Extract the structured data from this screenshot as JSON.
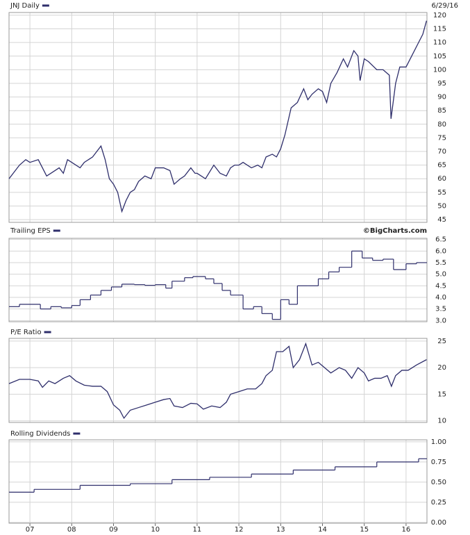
{
  "chart_data": [
    {
      "type": "line",
      "subtitle": "6/29/16",
      "series": [
        {
          "name": "JNJ Daily",
          "color": "#2e2e6b",
          "x": [
            2006.5,
            2006.75,
            2006.9,
            2007.0,
            2007.2,
            2007.3,
            2007.4,
            2007.5,
            2007.7,
            2007.8,
            2007.9,
            2008.0,
            2008.2,
            2008.3,
            2008.5,
            2008.6,
            2008.7,
            2008.8,
            2008.9,
            2009.0,
            2009.1,
            2009.2,
            2009.3,
            2009.4,
            2009.5,
            2009.6,
            2009.75,
            2009.9,
            2010.0,
            2010.2,
            2010.35,
            2010.45,
            2010.6,
            2010.7,
            2010.85,
            2010.95,
            2011.0,
            2011.2,
            2011.4,
            2011.55,
            2011.7,
            2011.8,
            2011.9,
            2012.0,
            2012.1,
            2012.3,
            2012.45,
            2012.55,
            2012.65,
            2012.8,
            2012.9,
            2013.0,
            2013.1,
            2013.25,
            2013.4,
            2013.55,
            2013.65,
            2013.75,
            2013.9,
            2014.0,
            2014.1,
            2014.2,
            2014.35,
            2014.5,
            2014.6,
            2014.75,
            2014.85,
            2014.9,
            2015.0,
            2015.1,
            2015.3,
            2015.45,
            2015.6,
            2015.64,
            2015.75,
            2015.85,
            2016.0,
            2016.1,
            2016.3,
            2016.4,
            2016.49
          ],
          "values": [
            60,
            65,
            67,
            66,
            67,
            64,
            61,
            62,
            64,
            62,
            67,
            66,
            64,
            66,
            68,
            70,
            72,
            67,
            60,
            58,
            55,
            48,
            52,
            55,
            56,
            59,
            61,
            60,
            64,
            64,
            63,
            58,
            60,
            61,
            64,
            62,
            62,
            60,
            65,
            62,
            61,
            64,
            65,
            65,
            66,
            64,
            65,
            64,
            68,
            69,
            68,
            71,
            76,
            86,
            88,
            93,
            89,
            91,
            93,
            92,
            88,
            95,
            99,
            104,
            101,
            107,
            105,
            96,
            104,
            103,
            100,
            100,
            98,
            82,
            95,
            101,
            101,
            104,
            110,
            113,
            118
          ]
        }
      ],
      "xlim": [
        2006.5,
        2016.5
      ],
      "xticks": [
        2007,
        2008,
        2009,
        2010,
        2011,
        2012,
        2013,
        2014,
        2015,
        2016
      ],
      "ylim": [
        44,
        121
      ],
      "yticks": [
        45,
        50,
        55,
        60,
        65,
        70,
        75,
        80,
        85,
        90,
        95,
        100,
        105,
        110,
        115,
        120
      ],
      "grid": true
    },
    {
      "type": "step",
      "annotation": "©BigCharts.com",
      "series": [
        {
          "name": "Trailing EPS",
          "color": "#2e2e6b",
          "x": [
            2006.5,
            2006.75,
            2007.25,
            2007.5,
            2007.75,
            2008.0,
            2008.2,
            2008.45,
            2008.7,
            2008.95,
            2009.2,
            2009.5,
            2009.75,
            2010.0,
            2010.25,
            2010.4,
            2010.7,
            2010.9,
            2011.2,
            2011.4,
            2011.6,
            2011.8,
            2012.1,
            2012.35,
            2012.55,
            2012.8,
            2013.0,
            2013.2,
            2013.4,
            2013.65,
            2013.9,
            2014.15,
            2014.4,
            2014.7,
            2014.95,
            2015.2,
            2015.45,
            2015.7,
            2016.0,
            2016.25
          ],
          "values": [
            3.6,
            3.7,
            3.5,
            3.6,
            3.55,
            3.65,
            3.9,
            4.1,
            4.3,
            4.45,
            4.57,
            4.55,
            4.52,
            4.55,
            4.4,
            4.7,
            4.85,
            4.9,
            4.8,
            4.6,
            4.3,
            4.1,
            3.5,
            3.6,
            3.3,
            3.05,
            3.9,
            3.7,
            4.5,
            4.5,
            4.8,
            5.1,
            5.3,
            6.0,
            5.7,
            5.6,
            5.65,
            5.2,
            5.45,
            5.5
          ]
        }
      ],
      "xlim": [
        2006.5,
        2016.5
      ],
      "xticks": [
        2007,
        2008,
        2009,
        2010,
        2011,
        2012,
        2013,
        2014,
        2015,
        2016
      ],
      "ylim": [
        2.95,
        6.55
      ],
      "yticks": [
        {
          "value": 3,
          "label": "3.0"
        },
        3.5,
        {
          "value": 4,
          "label": "4.0"
        },
        4.5,
        {
          "value": 5,
          "label": "5.0"
        },
        5.5,
        {
          "value": 6,
          "label": "6.0"
        },
        6.5
      ],
      "grid": true
    },
    {
      "type": "line",
      "series": [
        {
          "name": "P/E Ratio",
          "color": "#2e2e6b",
          "x": [
            2006.5,
            2006.75,
            2007.0,
            2007.2,
            2007.3,
            2007.45,
            2007.6,
            2007.8,
            2007.95,
            2008.1,
            2008.3,
            2008.5,
            2008.7,
            2008.85,
            2009.0,
            2009.15,
            2009.25,
            2009.4,
            2009.6,
            2009.8,
            2010.0,
            2010.2,
            2010.35,
            2010.45,
            2010.65,
            2010.85,
            2011.0,
            2011.15,
            2011.35,
            2011.55,
            2011.7,
            2011.8,
            2012.0,
            2012.2,
            2012.4,
            2012.55,
            2012.65,
            2012.8,
            2012.9,
            2013.05,
            2013.2,
            2013.3,
            2013.45,
            2013.6,
            2013.75,
            2013.9,
            2014.05,
            2014.2,
            2014.4,
            2014.55,
            2014.7,
            2014.85,
            2015.0,
            2015.1,
            2015.25,
            2015.4,
            2015.55,
            2015.65,
            2015.75,
            2015.9,
            2016.05,
            2016.25,
            2016.49
          ],
          "values": [
            17,
            17.8,
            17.8,
            17.5,
            16.3,
            17.5,
            17,
            18,
            18.5,
            17.5,
            16.7,
            16.5,
            16.5,
            15.5,
            13,
            12,
            10.5,
            12,
            12.5,
            13,
            13.5,
            14,
            14.2,
            12.8,
            12.5,
            13.3,
            13.2,
            12.2,
            12.8,
            12.5,
            13.5,
            15,
            15.5,
            16,
            16,
            17,
            18.5,
            19.5,
            23,
            23,
            24,
            20,
            21.5,
            24.5,
            20.5,
            21,
            20,
            19,
            20,
            19.5,
            18,
            20,
            19,
            17.5,
            18,
            18,
            18.5,
            16.5,
            18.5,
            19.5,
            19.5,
            20.5,
            21.5
          ]
        }
      ],
      "xlim": [
        2006.5,
        2016.5
      ],
      "xticks": [
        2007,
        2008,
        2009,
        2010,
        2011,
        2012,
        2013,
        2014,
        2015,
        2016
      ],
      "ylim": [
        9.7,
        25.5
      ],
      "yticks": [
        10,
        15,
        20,
        25
      ],
      "grid": true
    },
    {
      "type": "step",
      "series": [
        {
          "name": "Rolling Dividends",
          "color": "#2e2e6b",
          "x": [
            2006.5,
            2007.1,
            2008.2,
            2009.4,
            2010.4,
            2011.3,
            2012.3,
            2013.3,
            2014.3,
            2015.3,
            2016.3
          ],
          "values": [
            0.375,
            0.41,
            0.46,
            0.48,
            0.53,
            0.56,
            0.6,
            0.65,
            0.69,
            0.75,
            0.79
          ]
        }
      ],
      "xlim": [
        2006.5,
        2016.5
      ],
      "xticks": [
        {
          "value": 2007,
          "label": "07"
        },
        {
          "value": 2008,
          "label": "08"
        },
        {
          "value": 2009,
          "label": "09"
        },
        {
          "value": 2010,
          "label": "10"
        },
        {
          "value": 2011,
          "label": "11"
        },
        {
          "value": 2012,
          "label": "12"
        },
        {
          "value": 2013,
          "label": "13"
        },
        {
          "value": 2014,
          "label": "14"
        },
        {
          "value": 2015,
          "label": "15"
        },
        {
          "value": 2016,
          "label": "16"
        }
      ],
      "ylim": [
        -0.01,
        1.025
      ],
      "yticks": [
        {
          "value": 0,
          "label": "0.00"
        },
        0.25,
        {
          "value": 0.5,
          "label": "0.50"
        },
        0.75,
        {
          "value": 1,
          "label": "1.00"
        }
      ],
      "grid": true
    }
  ]
}
